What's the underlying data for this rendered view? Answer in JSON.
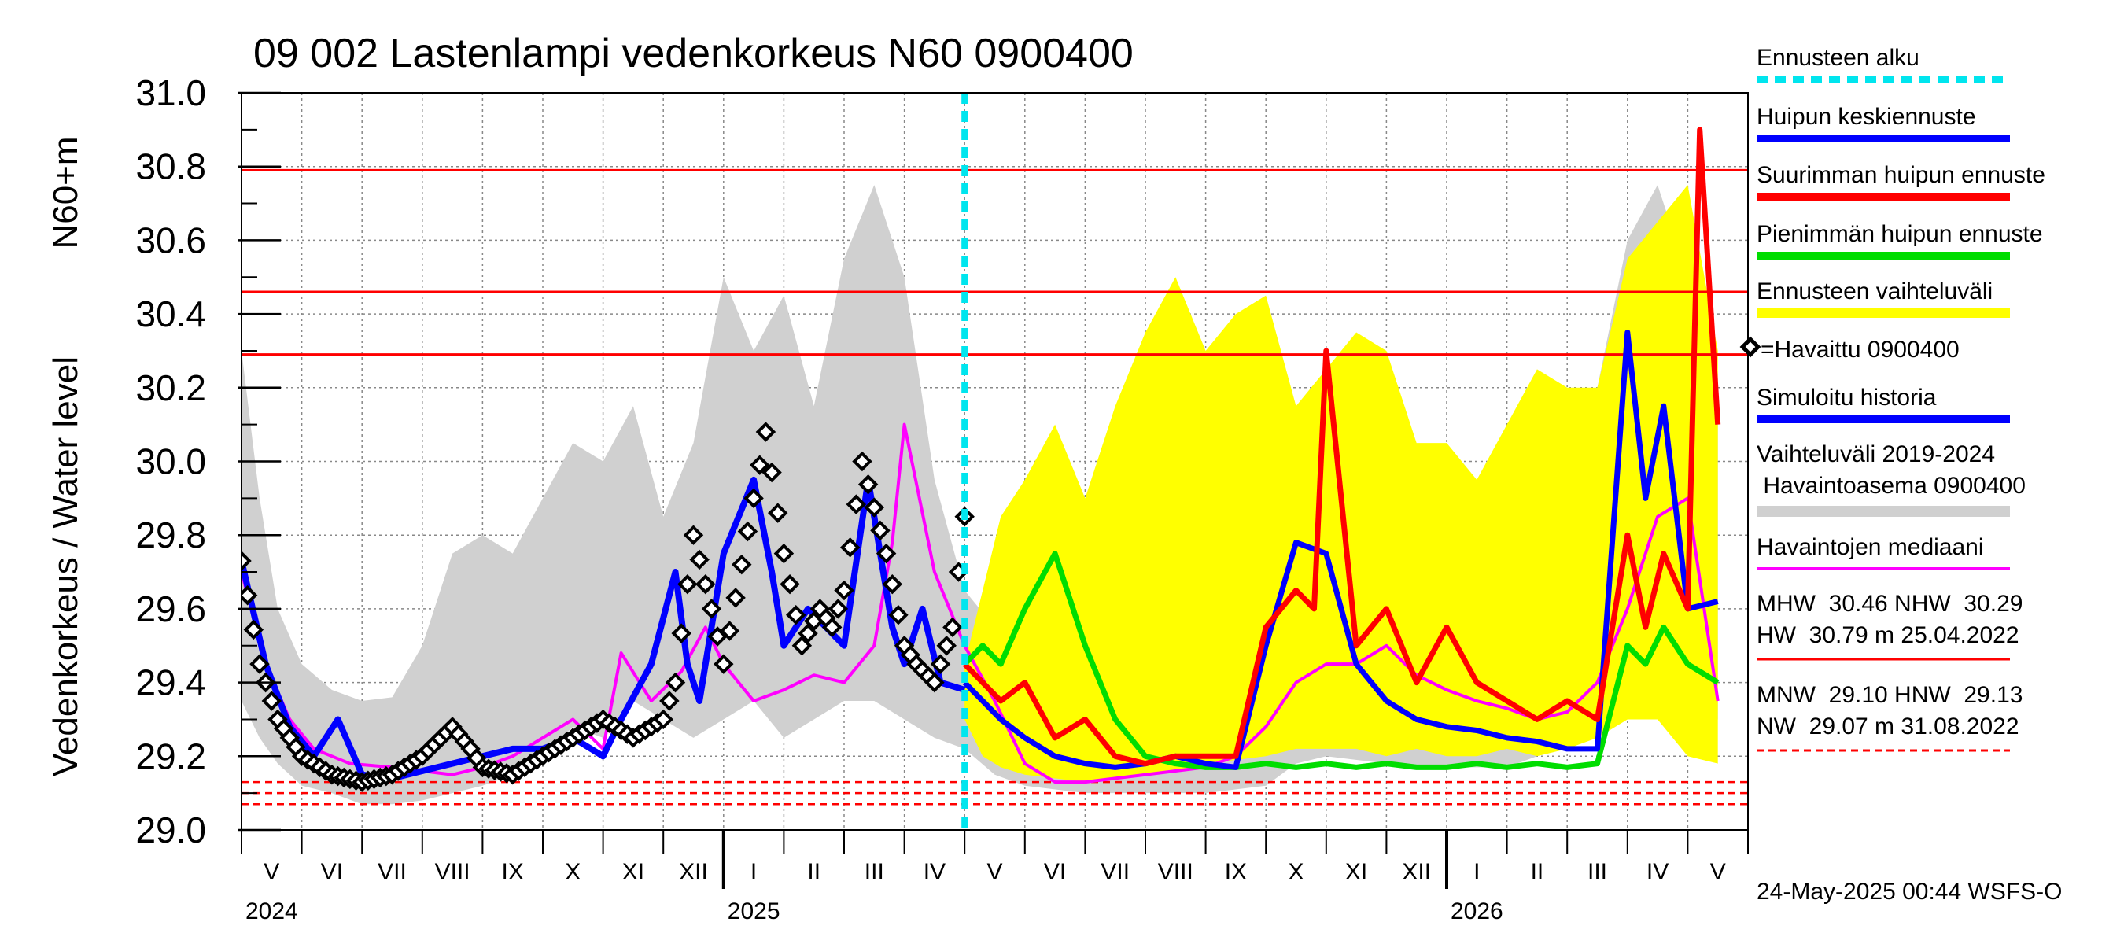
{
  "chart_data": {
    "type": "line",
    "title": "09 002 Lastenlampi vedenkorkeus N60 0900400",
    "ylabel_left": "Vedenkorkeus / Water level",
    "ylabel_unit": "N60+m",
    "ylim": [
      29.0,
      31.0
    ],
    "y_ticks": [
      "29.0",
      "29.2",
      "29.4",
      "29.6",
      "29.8",
      "30.0",
      "30.2",
      "30.4",
      "30.6",
      "30.8",
      "31.0"
    ],
    "months": [
      "V",
      "VI",
      "VII",
      "VIII",
      "IX",
      "X",
      "XI",
      "XII",
      "I",
      "II",
      "III",
      "IV",
      "V",
      "VI",
      "VII",
      "VIII",
      "IX",
      "X",
      "XI",
      "XII",
      "I",
      "II",
      "III",
      "IV",
      "V"
    ],
    "years": [
      "2024",
      "2025",
      "2026"
    ],
    "forecast_start_month": 12.0,
    "reference_lines": {
      "MHW": 30.46,
      "NHW": 30.29,
      "HW": 30.79,
      "MNW": 29.1,
      "HNW": 29.13,
      "NW": 29.07
    },
    "series": [
      {
        "name": "Vaihteluväli 2019-2024 Havaintoasema 0900400",
        "color": "#d0d0d0",
        "x": [
          0,
          0.3,
          0.6,
          1,
          1.5,
          2,
          2.5,
          3,
          3.5,
          4,
          4.5,
          5,
          5.5,
          6,
          6.5,
          7,
          7.5,
          8,
          8.5,
          9,
          9.5,
          10,
          10.5,
          11,
          11.5,
          12,
          12.5,
          13,
          14,
          15,
          16,
          17,
          17.5,
          18,
          19,
          20,
          21,
          21.5,
          22,
          22.5,
          23,
          23.5,
          24,
          24.5
        ],
        "upper": [
          30.3,
          29.9,
          29.6,
          29.45,
          29.38,
          29.35,
          29.36,
          29.5,
          29.75,
          29.8,
          29.75,
          29.9,
          30.05,
          30.0,
          30.15,
          29.85,
          30.05,
          30.5,
          30.3,
          30.45,
          30.15,
          30.55,
          30.75,
          30.5,
          29.95,
          29.65,
          29.55,
          29.5,
          29.5,
          29.45,
          29.35,
          29.4,
          29.7,
          29.5,
          29.55,
          29.5,
          29.55,
          29.6,
          29.7,
          30.2,
          30.6,
          30.75,
          30.5,
          30.1
        ],
        "lower": [
          29.35,
          29.25,
          29.18,
          29.12,
          29.1,
          29.07,
          29.07,
          29.08,
          29.1,
          29.12,
          29.15,
          29.2,
          29.28,
          29.25,
          29.35,
          29.3,
          29.25,
          29.3,
          29.35,
          29.25,
          29.3,
          29.35,
          29.35,
          29.3,
          29.25,
          29.22,
          29.15,
          29.12,
          29.1,
          29.1,
          29.1,
          29.12,
          29.18,
          29.2,
          29.18,
          29.17,
          29.17,
          29.2,
          29.3,
          29.35,
          29.4,
          29.35,
          29.33,
          29.3
        ]
      },
      {
        "name": "Ennusteen vaihteluväli",
        "color": "#ffff00",
        "x": [
          12,
          12.3,
          12.6,
          13,
          13.5,
          14,
          14.5,
          15,
          15.5,
          16,
          16.5,
          17,
          17.5,
          18,
          18.5,
          19,
          19.5,
          20,
          20.5,
          21,
          21.5,
          22,
          22.5,
          23,
          23.5,
          24,
          24.5
        ],
        "upper": [
          29.45,
          29.65,
          29.85,
          29.95,
          30.1,
          29.9,
          30.15,
          30.35,
          30.5,
          30.3,
          30.4,
          30.45,
          30.15,
          30.25,
          30.35,
          30.3,
          30.05,
          30.05,
          29.95,
          30.1,
          30.25,
          30.2,
          30.2,
          30.55,
          30.65,
          30.75,
          30.3
        ],
        "lower": [
          29.3,
          29.2,
          29.17,
          29.15,
          29.14,
          29.13,
          29.14,
          29.15,
          29.16,
          29.18,
          29.19,
          29.2,
          29.22,
          29.22,
          29.22,
          29.2,
          29.22,
          29.2,
          29.2,
          29.22,
          29.2,
          29.22,
          29.25,
          29.3,
          29.3,
          29.2,
          29.18
        ]
      },
      {
        "name": "Havaintojen mediaani",
        "color": "#ff00ff",
        "x": [
          0,
          0.4,
          0.8,
          1.2,
          1.8,
          2.5,
          3,
          3.5,
          4,
          4.5,
          5,
          5.5,
          6,
          6.3,
          6.8,
          7.3,
          7.7,
          8,
          8.5,
          9,
          9.5,
          10,
          10.5,
          10.8,
          11,
          11.5,
          12,
          12.5,
          13,
          13.5,
          14,
          14.5,
          15,
          15.5,
          16,
          16.5,
          17,
          17.5,
          18,
          18.5,
          19,
          19.5,
          20,
          20.5,
          21,
          21.5,
          22,
          22.5,
          23,
          23.5,
          24,
          24.5
        ],
        "y": [
          29.7,
          29.45,
          29.3,
          29.22,
          29.18,
          29.17,
          29.16,
          29.15,
          29.17,
          29.2,
          29.25,
          29.3,
          29.22,
          29.48,
          29.35,
          29.43,
          29.55,
          29.45,
          29.35,
          29.38,
          29.42,
          29.4,
          29.5,
          29.78,
          30.1,
          29.7,
          29.5,
          29.35,
          29.18,
          29.13,
          29.13,
          29.14,
          29.15,
          29.16,
          29.17,
          29.2,
          29.28,
          29.4,
          29.45,
          29.45,
          29.5,
          29.42,
          29.38,
          29.35,
          29.33,
          29.3,
          29.32,
          29.4,
          29.6,
          29.85,
          29.9,
          29.35
        ]
      },
      {
        "name": "Havaittu 0900400",
        "color": "#000000",
        "x": [
          0,
          0.3,
          0.6,
          1,
          1.5,
          2,
          2.5,
          3,
          3.5,
          3.8,
          4,
          4.5,
          5,
          5.5,
          6,
          6.5,
          7,
          7.2,
          7.5,
          7.8,
          8,
          8.5,
          8.7,
          9,
          9.3,
          9.6,
          9.8,
          10,
          10.3,
          10.7,
          11,
          11.2,
          11.5,
          11.8,
          12
        ],
        "y": [
          29.73,
          29.45,
          29.3,
          29.2,
          29.15,
          29.13,
          29.15,
          29.2,
          29.28,
          29.22,
          29.17,
          29.15,
          29.2,
          29.25,
          29.3,
          29.25,
          29.3,
          29.4,
          29.8,
          29.6,
          29.45,
          29.9,
          30.08,
          29.75,
          29.5,
          29.6,
          29.55,
          29.65,
          30.0,
          29.75,
          29.5,
          29.45,
          29.4,
          29.55,
          29.85
        ]
      },
      {
        "name": "Simuloitu historia",
        "color": "#0000ff",
        "x": [
          0,
          0.4,
          0.8,
          1.2,
          1.6,
          2,
          2.5,
          3,
          3.5,
          4,
          4.5,
          5,
          5.5,
          6,
          6.3,
          6.8,
          7.2,
          7.4,
          7.6,
          8,
          8.5,
          8.8,
          9,
          9.4,
          9.7,
          10,
          10.4,
          10.8,
          11,
          11.3,
          11.6,
          12
        ],
        "y": [
          29.73,
          29.45,
          29.28,
          29.2,
          29.3,
          29.15,
          29.14,
          29.16,
          29.18,
          29.2,
          29.22,
          29.22,
          29.25,
          29.2,
          29.3,
          29.45,
          29.7,
          29.45,
          29.35,
          29.75,
          29.95,
          29.7,
          29.5,
          29.6,
          29.55,
          29.5,
          29.95,
          29.55,
          29.45,
          29.6,
          29.4,
          29.38
        ]
      },
      {
        "name": "Huipun keskiennuste",
        "color": "#0000ff",
        "x": [
          12,
          12.3,
          12.6,
          13,
          13.5,
          14,
          14.5,
          15,
          15.5,
          16,
          16.5,
          17,
          17.5,
          18,
          18.5,
          19,
          19.5,
          20,
          20.5,
          21,
          21.5,
          22,
          22.5,
          23,
          23.3,
          23.6,
          24,
          24.5
        ],
        "y": [
          29.4,
          29.35,
          29.3,
          29.25,
          29.2,
          29.18,
          29.17,
          29.18,
          29.2,
          29.18,
          29.17,
          29.5,
          29.78,
          29.75,
          29.45,
          29.35,
          29.3,
          29.28,
          29.27,
          29.25,
          29.24,
          29.22,
          29.22,
          30.35,
          29.9,
          30.15,
          29.6,
          29.62
        ]
      },
      {
        "name": "Suurimman huipun ennuste",
        "color": "#ff0000",
        "x": [
          12,
          12.3,
          12.6,
          13,
          13.5,
          14,
          14.5,
          15,
          15.5,
          16,
          16.5,
          17,
          17.5,
          17.8,
          18,
          18.5,
          19,
          19.5,
          20,
          20.5,
          21,
          21.5,
          22,
          22.5,
          23,
          23.3,
          23.6,
          24,
          24.2,
          24.5
        ],
        "y": [
          29.45,
          29.4,
          29.35,
          29.4,
          29.25,
          29.3,
          29.2,
          29.18,
          29.2,
          29.2,
          29.2,
          29.55,
          29.65,
          29.6,
          30.3,
          29.5,
          29.6,
          29.4,
          29.55,
          29.4,
          29.35,
          29.3,
          29.35,
          29.3,
          29.8,
          29.55,
          29.75,
          29.6,
          30.9,
          30.1
        ]
      },
      {
        "name": "Pienimmän huipun ennuste",
        "color": "#00dd00",
        "x": [
          12,
          12.3,
          12.6,
          13,
          13.5,
          14,
          14.5,
          15,
          15.5,
          16,
          16.5,
          17,
          17.5,
          18,
          18.5,
          19,
          19.5,
          20,
          20.5,
          21,
          21.5,
          22,
          22.5,
          23,
          23.3,
          23.6,
          24,
          24.5
        ],
        "y": [
          29.45,
          29.5,
          29.45,
          29.6,
          29.75,
          29.5,
          29.3,
          29.2,
          29.18,
          29.17,
          29.17,
          29.18,
          29.17,
          29.18,
          29.17,
          29.18,
          29.17,
          29.17,
          29.18,
          29.17,
          29.18,
          29.17,
          29.18,
          29.5,
          29.45,
          29.55,
          29.45,
          29.4
        ]
      }
    ]
  },
  "legend": {
    "forecast_start": "Ennusteen alku",
    "mean_peak": "Huipun keskiennuste",
    "max_peak": "Suurimman huipun ennuste",
    "min_peak": "Pienimmän huipun ennuste",
    "forecast_range": "Ennusteen vaihteluväli",
    "observed": "=Havaittu 0900400",
    "simulated": "Simuloitu historia",
    "range_line1": "Vaihteluväli 2019-2024",
    "range_line2": " Havaintoasema 0900400",
    "median": "Havaintojen mediaani",
    "stats_line1": "MHW  30.46 NHW  30.29",
    "stats_line2": "HW  30.79 m 25.04.2022",
    "stats_line3": "MNW  29.10 HNW  29.13",
    "stats_line4": "NW  29.07 m 31.08.2022"
  },
  "footer": "24-May-2025 00:44 WSFS-O",
  "colors": {
    "forecast_start": "#00e5ee",
    "mean": "#0000ff",
    "max": "#ff0000",
    "min": "#00dd00",
    "range": "#ffff00",
    "hist_range": "#d0d0d0",
    "median": "#ff00ff",
    "refline": "#ff0000"
  }
}
